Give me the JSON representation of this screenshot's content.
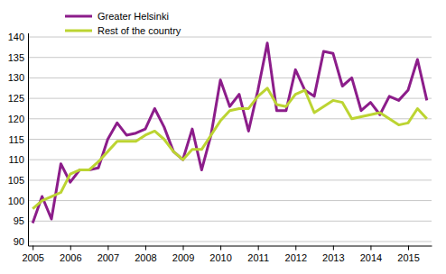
{
  "chart_data": {
    "type": "line",
    "categories": [
      "2005",
      null,
      null,
      null,
      "2006",
      null,
      null,
      null,
      "2007",
      null,
      null,
      null,
      "2008",
      null,
      null,
      null,
      "2009",
      null,
      null,
      null,
      "2010",
      null,
      null,
      null,
      "2011",
      null,
      null,
      null,
      "2012",
      null,
      null,
      null,
      "2013",
      null,
      null,
      null,
      "2014",
      null,
      null,
      null,
      "2015",
      null,
      null
    ],
    "series": [
      {
        "name": "Greater Helsinki",
        "color": "#8c1d8a",
        "values": [
          94.5,
          101,
          95.5,
          109,
          104.5,
          107.5,
          107.5,
          108,
          115,
          119,
          116,
          116.5,
          117.5,
          122.5,
          118,
          112,
          110,
          117.5,
          107.5,
          116,
          129.5,
          123,
          126,
          117,
          127,
          138.5,
          122,
          122,
          132,
          127,
          125.5,
          136.5,
          136,
          128,
          130,
          122,
          124,
          121,
          125.5,
          124.5,
          127,
          134.5,
          124.5
        ]
      },
      {
        "name": "Rest of the country",
        "color": "#bcd432",
        "values": [
          98,
          100,
          101,
          102,
          106.5,
          107.5,
          107.5,
          109.5,
          112,
          114.5,
          114.5,
          114.5,
          116,
          117,
          115,
          112,
          110,
          112.5,
          112.5,
          116,
          119.5,
          122,
          122.5,
          122.5,
          125.5,
          127.5,
          123.5,
          123,
          126,
          127,
          121.5,
          123,
          124.5,
          124,
          120,
          120.5,
          121,
          121.5,
          120,
          118.5,
          119,
          122.5,
          120
        ]
      }
    ],
    "ylim": [
      89,
      141
    ],
    "yticks": [
      90,
      95,
      100,
      105,
      110,
      115,
      120,
      125,
      130,
      135,
      140
    ],
    "grid": true,
    "legend": "upper left"
  }
}
